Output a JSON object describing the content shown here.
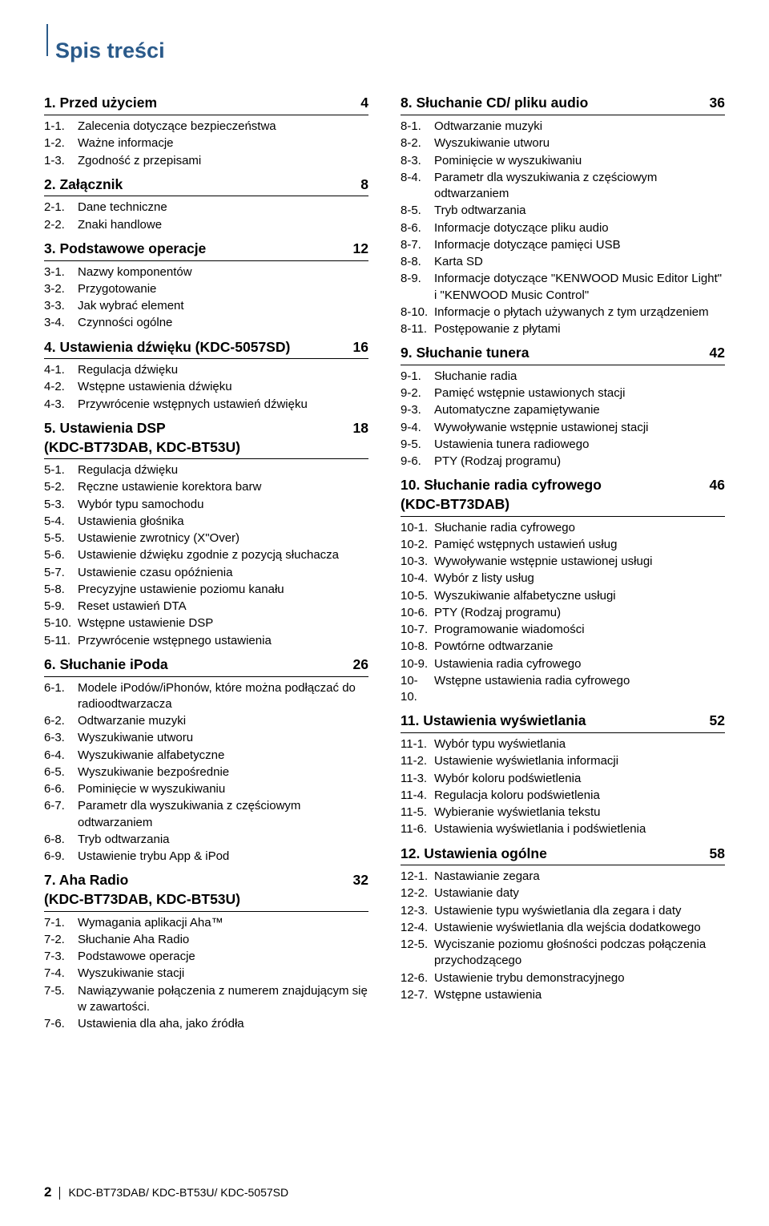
{
  "title": "Spis treści",
  "footer": {
    "page_number": "2",
    "models": "KDC-BT73DAB/ KDC-BT53U/ KDC-5057SD"
  },
  "columns": [
    {
      "sections": [
        {
          "title": "1.  Przed użyciem",
          "page": "4",
          "items": [
            {
              "num": "1-1.",
              "txt": "Zalecenia dotyczące bezpieczeństwa"
            },
            {
              "num": "1-2.",
              "txt": "Ważne informacje"
            },
            {
              "num": "1-3.",
              "txt": "Zgodność z przepisami"
            }
          ]
        },
        {
          "title": "2.  Załącznik",
          "page": "8",
          "items": [
            {
              "num": "2-1.",
              "txt": "Dane techniczne"
            },
            {
              "num": "2-2.",
              "txt": "Znaki handlowe"
            }
          ]
        },
        {
          "title": "3.  Podstawowe operacje",
          "page": "12",
          "items": [
            {
              "num": "3-1.",
              "txt": "Nazwy komponentów"
            },
            {
              "num": "3-2.",
              "txt": "Przygotowanie"
            },
            {
              "num": "3-3.",
              "txt": "Jak wybrać element"
            },
            {
              "num": "3-4.",
              "txt": "Czynności ogólne"
            }
          ]
        },
        {
          "title": "4.  Ustawienia dźwięku (KDC-5057SD)",
          "page": "16",
          "items": [
            {
              "num": "4-1.",
              "txt": "Regulacja dźwięku"
            },
            {
              "num": "4-2.",
              "txt": "Wstępne ustawienia dźwięku"
            },
            {
              "num": "4-3.",
              "txt": "Przywrócenie wstępnych ustawień dźwięku"
            }
          ]
        },
        {
          "title": "5.  Ustawienia DSP\n(KDC-BT73DAB, KDC-BT53U)",
          "page": "18",
          "items": [
            {
              "num": "5-1.",
              "txt": "Regulacja dźwięku"
            },
            {
              "num": "5-2.",
              "txt": "Ręczne ustawienie korektora barw"
            },
            {
              "num": "5-3.",
              "txt": "Wybór typu samochodu"
            },
            {
              "num": "5-4.",
              "txt": "Ustawienia głośnika"
            },
            {
              "num": "5-5.",
              "txt": "Ustawienie zwrotnicy (X\"Over)"
            },
            {
              "num": "5-6.",
              "txt": "Ustawienie dźwięku zgodnie z pozycją słuchacza"
            },
            {
              "num": "5-7.",
              "txt": "Ustawienie czasu opóźnienia"
            },
            {
              "num": "5-8.",
              "txt": "Precyzyjne ustawienie poziomu kanału"
            },
            {
              "num": "5-9.",
              "txt": "Reset ustawień DTA"
            },
            {
              "num": "5-10.",
              "txt": "Wstępne ustawienie DSP"
            },
            {
              "num": "5-11.",
              "txt": "Przywrócenie wstępnego ustawienia"
            }
          ]
        },
        {
          "title": "6.  Słuchanie iPoda",
          "page": "26",
          "items": [
            {
              "num": "6-1.",
              "txt": "Modele iPodów/iPhonów, które można podłączać do radioodtwarzacza"
            },
            {
              "num": "6-2.",
              "txt": "Odtwarzanie muzyki"
            },
            {
              "num": "6-3.",
              "txt": "Wyszukiwanie utworu"
            },
            {
              "num": "6-4.",
              "txt": "Wyszukiwanie alfabetyczne"
            },
            {
              "num": "6-5.",
              "txt": "Wyszukiwanie bezpośrednie"
            },
            {
              "num": "6-6.",
              "txt": "Pominięcie w wyszukiwaniu"
            },
            {
              "num": "6-7.",
              "txt": "Parametr dla wyszukiwania z częściowym odtwarzaniem"
            },
            {
              "num": "6-8.",
              "txt": "Tryb odtwarzania"
            },
            {
              "num": "6-9.",
              "txt": "Ustawienie trybu App & iPod"
            }
          ]
        },
        {
          "title": "7.  Aha Radio\n(KDC-BT73DAB, KDC-BT53U)",
          "page": "32",
          "items": [
            {
              "num": "7-1.",
              "txt": "Wymagania aplikacji Aha™"
            },
            {
              "num": "7-2.",
              "txt": "Słuchanie Aha Radio"
            },
            {
              "num": "7-3.",
              "txt": "Podstawowe operacje"
            },
            {
              "num": "7-4.",
              "txt": "Wyszukiwanie stacji"
            },
            {
              "num": "7-5.",
              "txt": "Nawiązywanie połączenia z numerem znajdującym się w zawartości."
            },
            {
              "num": "7-6.",
              "txt": "Ustawienia dla aha, jako źródła"
            }
          ]
        }
      ]
    },
    {
      "sections": [
        {
          "title": "8.  Słuchanie CD/ pliku audio",
          "page": "36",
          "items": [
            {
              "num": "8-1.",
              "txt": "Odtwarzanie muzyki"
            },
            {
              "num": "8-2.",
              "txt": "Wyszukiwanie utworu"
            },
            {
              "num": "8-3.",
              "txt": "Pominięcie w wyszukiwaniu"
            },
            {
              "num": "8-4.",
              "txt": "Parametr dla wyszukiwania z częściowym odtwarzaniem"
            },
            {
              "num": "8-5.",
              "txt": "Tryb odtwarzania"
            },
            {
              "num": "8-6.",
              "txt": "Informacje dotyczące pliku audio"
            },
            {
              "num": "8-7.",
              "txt": "Informacje dotyczące pamięci USB"
            },
            {
              "num": "8-8.",
              "txt": "Karta SD"
            },
            {
              "num": "8-9.",
              "txt": "Informacje dotyczące \"KENWOOD Music Editor Light\" i \"KENWOOD Music Control\""
            },
            {
              "num": "8-10.",
              "txt": "Informacje o płytach używanych z tym urządzeniem"
            },
            {
              "num": "8-11.",
              "txt": "Postępowanie z płytami"
            }
          ]
        },
        {
          "title": "9.  Słuchanie tunera",
          "page": "42",
          "items": [
            {
              "num": "9-1.",
              "txt": "Słuchanie radia"
            },
            {
              "num": "9-2.",
              "txt": "Pamięć wstępnie ustawionych stacji"
            },
            {
              "num": "9-3.",
              "txt": "Automatyczne zapamiętywanie"
            },
            {
              "num": "9-4.",
              "txt": "Wywoływanie wstępnie ustawionej stacji"
            },
            {
              "num": "9-5.",
              "txt": "Ustawienia tunera radiowego"
            },
            {
              "num": "9-6.",
              "txt": "PTY (Rodzaj programu)"
            }
          ]
        },
        {
          "title": "10.  Słuchanie radia cyfrowego\n(KDC-BT73DAB)",
          "page": "46",
          "items": [
            {
              "num": "10-1.",
              "txt": "Słuchanie radia cyfrowego"
            },
            {
              "num": "10-2.",
              "txt": "Pamięć wstępnych ustawień usług"
            },
            {
              "num": "10-3.",
              "txt": "Wywoływanie wstępnie ustawionej usługi"
            },
            {
              "num": "10-4.",
              "txt": "Wybór z listy usług"
            },
            {
              "num": "10-5.",
              "txt": "Wyszukiwanie alfabetyczne usługi"
            },
            {
              "num": "10-6.",
              "txt": "PTY (Rodzaj programu)"
            },
            {
              "num": "10-7.",
              "txt": "Programowanie wiadomości"
            },
            {
              "num": "10-8.",
              "txt": "Powtórne odtwarzanie"
            },
            {
              "num": "10-9.",
              "txt": "Ustawienia radia cyfrowego"
            },
            {
              "num": "10-10.",
              "txt": "Wstępne ustawienia radia cyfrowego"
            }
          ]
        },
        {
          "title": "11.  Ustawienia wyświetlania",
          "page": "52",
          "items": [
            {
              "num": "11-1.",
              "txt": "Wybór typu wyświetlania"
            },
            {
              "num": "11-2.",
              "txt": "Ustawienie wyświetlania informacji"
            },
            {
              "num": "11-3.",
              "txt": "Wybór koloru podświetlenia"
            },
            {
              "num": "11-4.",
              "txt": "Regulacja koloru podświetlenia"
            },
            {
              "num": "11-5.",
              "txt": "Wybieranie wyświetlania tekstu"
            },
            {
              "num": "11-6.",
              "txt": "Ustawienia wyświetlania i podświetlenia"
            }
          ]
        },
        {
          "title": "12.  Ustawienia ogólne",
          "page": "58",
          "items": [
            {
              "num": "12-1.",
              "txt": "Nastawianie zegara"
            },
            {
              "num": "12-2.",
              "txt": "Ustawianie daty"
            },
            {
              "num": "12-3.",
              "txt": "Ustawienie typu wyświetlania dla zegara i daty"
            },
            {
              "num": "12-4.",
              "txt": "Ustawienie wyświetlania dla wejścia dodatkowego"
            },
            {
              "num": "12-5.",
              "txt": "Wyciszanie poziomu głośności podczas połączenia przychodzącego"
            },
            {
              "num": "12-6.",
              "txt": "Ustawienie trybu demonstracyjnego"
            },
            {
              "num": "12-7.",
              "txt": "Wstępne ustawienia"
            }
          ]
        }
      ]
    }
  ]
}
